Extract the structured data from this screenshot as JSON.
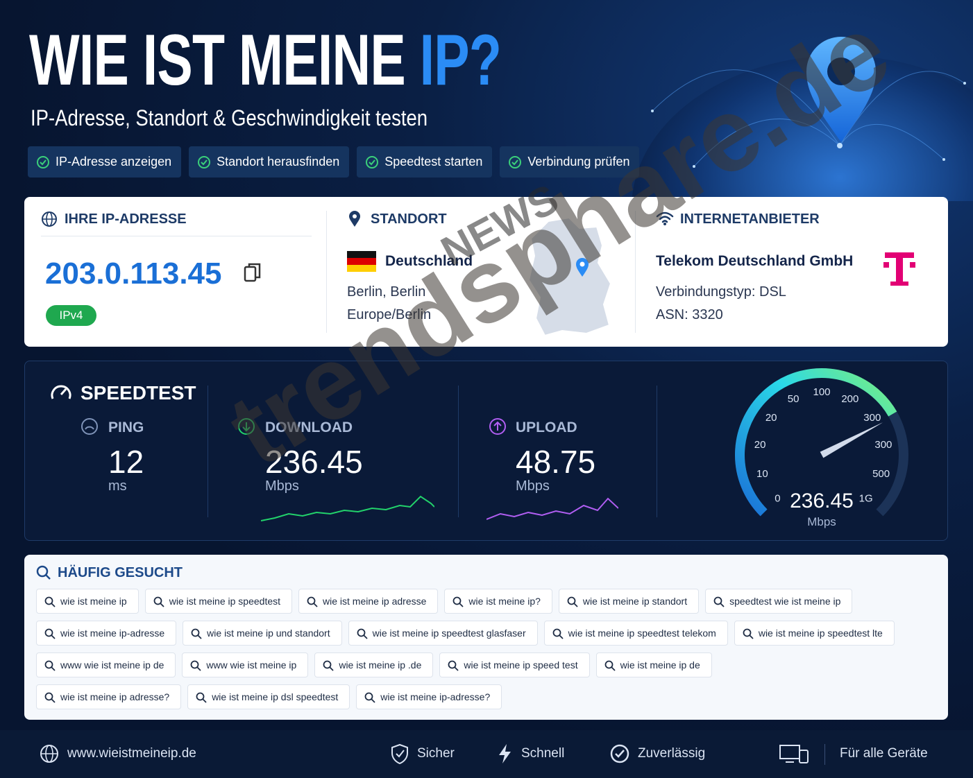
{
  "header": {
    "title": "WIE IST MEINE",
    "title_highlight": "IP?",
    "subtitle": "IP-Adresse, Standort & Geschwindigkeit testen",
    "badges": [
      "IP-Adresse anzeigen",
      "Standort herausfinden",
      "Speedtest starten",
      "Verbindung prüfen"
    ]
  },
  "ip_address": {
    "label": "IHRE IP-ADRESSE",
    "value": "203.0.113.45",
    "version": "IPv4"
  },
  "location": {
    "label": "STANDORT",
    "country": "Deutschland",
    "city": "Berlin, Berlin",
    "timezone": "Europe/Berlin"
  },
  "provider": {
    "label": "INTERNETANBIETER",
    "name": "Telekom Deutschland GmbH",
    "connection": "Verbindungstyp: DSL",
    "asn": "ASN: 3320"
  },
  "speedtest": {
    "title": "SPEEDTEST",
    "metrics": [
      {
        "label": "PING",
        "value": "12",
        "unit": "ms"
      },
      {
        "label": "DOWNLOAD",
        "value": "236.45",
        "unit": "Mbps"
      },
      {
        "label": "UPLOAD",
        "value": "48.75",
        "unit": "Mbps"
      }
    ],
    "gauge": {
      "scale": [
        "0",
        "10",
        "20",
        "20",
        "50",
        "100",
        "200",
        "300",
        "300",
        "500",
        "1G"
      ],
      "value": "236.45",
      "unit": "Mbps"
    }
  },
  "searches": {
    "title": "HÄUFIG GESUCHT",
    "rows": [
      [
        "wie ist meine ip",
        "wie ist meine ip speedtest",
        "wie ist meine ip adresse",
        "wie ist meine ip?",
        "wie ist meine ip standort",
        "speedtest wie ist meine ip"
      ],
      [
        "wie ist meine ip-adresse",
        "wie ist meine ip und standort",
        "wie ist meine ip speedtest glasfaser",
        "wie ist meine ip speedtest telekom",
        "wie ist meine ip speedtest lte"
      ],
      [
        "www wie ist meine ip de",
        "www wie ist meine ip",
        "wie ist meine ip .de",
        "wie ist meine ip speed test",
        "wie ist meine ip de"
      ],
      [
        "wie ist meine ip adresse?",
        "wie ist meine ip dsl speedtest",
        "wie ist meine ip-adresse?"
      ]
    ]
  },
  "footer": {
    "website": "www.wieistmeineip.de",
    "features": [
      "Sicher",
      "Schnell",
      "Zuverlässig",
      "Für alle Geräte"
    ]
  },
  "watermark": {
    "brand": "trendsphare.de",
    "badge": "NEWS"
  }
}
